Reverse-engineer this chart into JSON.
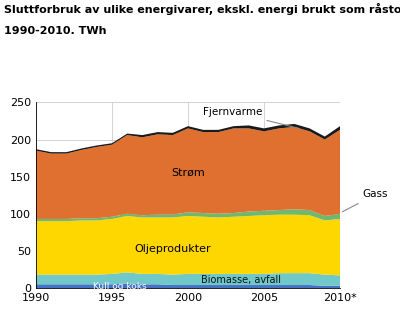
{
  "title_line1": "Sluttforbruk av ulike energivarer, ekskl. energi brukt som råstoff",
  "title_line2": "1990-2010. TWh",
  "years": [
    1990,
    1991,
    1992,
    1993,
    1994,
    1995,
    1996,
    1997,
    1998,
    1999,
    2000,
    2001,
    2002,
    2003,
    2004,
    2005,
    2006,
    2007,
    2008,
    2009,
    2010
  ],
  "kull_og_koks": [
    5,
    5,
    5,
    5,
    5,
    5,
    6,
    5,
    5,
    4,
    4,
    4,
    4,
    4,
    4,
    4,
    4,
    4,
    4,
    3,
    3
  ],
  "biomasse_avfall": [
    13,
    13,
    13,
    13,
    13,
    14,
    15,
    14,
    14,
    14,
    15,
    15,
    15,
    15,
    15,
    15,
    16,
    16,
    16,
    15,
    14
  ],
  "oljeprodukter": [
    72,
    72,
    72,
    73,
    73,
    74,
    76,
    76,
    76,
    77,
    78,
    77,
    76,
    77,
    78,
    79,
    79,
    79,
    78,
    73,
    76
  ],
  "gass": [
    3,
    3,
    3,
    3,
    3,
    3,
    3,
    3,
    4,
    4,
    5,
    5,
    5,
    5,
    6,
    6,
    6,
    7,
    7,
    6,
    7
  ],
  "strom": [
    92,
    88,
    88,
    92,
    96,
    97,
    106,
    105,
    108,
    107,
    113,
    109,
    110,
    114,
    112,
    107,
    110,
    111,
    106,
    103,
    113
  ],
  "fjernvarme": [
    2,
    2,
    2,
    2,
    2,
    2,
    2,
    3,
    3,
    3,
    3,
    3,
    3,
    3,
    4,
    4,
    4,
    4,
    4,
    4,
    5
  ],
  "colors": {
    "kull_og_koks": "#4472C4",
    "biomasse_avfall": "#70C8C8",
    "oljeprodukter": "#FFD700",
    "gass": "#70B870",
    "strom": "#E07030",
    "fjernvarme": "#1a1a1a"
  },
  "ylim": [
    0,
    250
  ],
  "yticks": [
    0,
    50,
    100,
    150,
    200,
    250
  ],
  "xticks": [
    1990,
    1995,
    2000,
    2005,
    2010
  ],
  "xticklabels": [
    "1990",
    "1995",
    "2000",
    "2005",
    "2010*"
  ],
  "label_strom": "Strøm",
  "label_olje": "Oljeprodukter",
  "label_bio": "Biomasse, avfall",
  "label_kull": "Kull og koks",
  "label_fjern": "Fjernvarme",
  "label_gass": "Gass"
}
